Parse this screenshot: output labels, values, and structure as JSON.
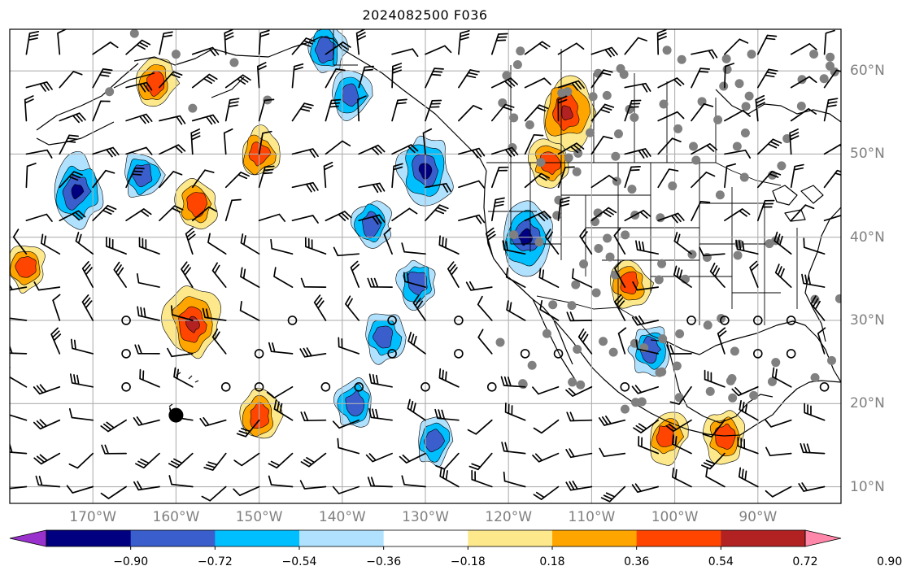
{
  "title": "2024082500 F036",
  "map": {
    "projection": "equirectangular",
    "lon_range": [
      -180,
      -80
    ],
    "lat_range": [
      8,
      65
    ],
    "gridlines": true,
    "states_drawn": true,
    "lat_labels": [
      "60°N",
      "50°N",
      "40°N",
      "30°N",
      "20°N",
      "10°N"
    ],
    "lat_values": [
      60,
      50,
      40,
      30,
      20,
      10
    ],
    "lon_labels": [
      "170°W",
      "160°W",
      "150°W",
      "140°W",
      "130°W",
      "120°W",
      "110°W",
      "100°W",
      "90°W"
    ],
    "lon_values": [
      -170,
      -160,
      -150,
      -140,
      -130,
      -120,
      -110,
      -100,
      -90
    ],
    "tropical_cyclone_marker": {
      "lon": -160,
      "lat": 18.6
    },
    "station_color": "#808080"
  },
  "colorbar": {
    "orientation": "horizontal",
    "extend": "both",
    "tick_labels": [
      "−0.90",
      "−0.72",
      "−0.54",
      "−0.36",
      "−0.18",
      "0.18",
      "0.36",
      "0.54",
      "0.72",
      "0.90"
    ],
    "colors": [
      "#9932cc",
      "#000080",
      "#3a5fcd",
      "#00bfff",
      "#b0e2ff",
      "#ffffff",
      "#fde98c",
      "#ffa500",
      "#ff4500",
      "#b22222",
      "#ff88aa"
    ]
  },
  "chart_data": {
    "type": "heatmap",
    "title": "2024082500 F036",
    "levels": [
      -0.9,
      -0.72,
      -0.54,
      -0.36,
      -0.18,
      0.18,
      0.36,
      0.54,
      0.72,
      0.9
    ],
    "positive_regions": [
      {
        "lon": -158,
        "lat": 29.5,
        "max": 0.72
      },
      {
        "lon": -150,
        "lat": 18.5,
        "max": 0.54
      },
      {
        "lon": -150,
        "lat": 50,
        "max": 0.54
      },
      {
        "lon": -157.5,
        "lat": 44,
        "max": 0.54
      },
      {
        "lon": -162.5,
        "lat": 58.5,
        "max": 0.54
      },
      {
        "lon": -113,
        "lat": 55,
        "max": 0.72
      },
      {
        "lon": -115,
        "lat": 49,
        "max": 0.54
      },
      {
        "lon": -105.5,
        "lat": 34.5,
        "max": 0.54
      },
      {
        "lon": -101,
        "lat": 16,
        "max": 0.54
      },
      {
        "lon": -94,
        "lat": 16,
        "max": 0.54
      },
      {
        "lon": -178,
        "lat": 36.5,
        "max": 0.54
      }
    ],
    "negative_regions": [
      {
        "lon": -172,
        "lat": 45.5,
        "min": -0.72
      },
      {
        "lon": -130,
        "lat": 48,
        "min": -0.72
      },
      {
        "lon": -139,
        "lat": 57,
        "min": -0.54
      },
      {
        "lon": -118,
        "lat": 40,
        "min": -0.72
      },
      {
        "lon": -131,
        "lat": 34.5,
        "min": -0.54
      },
      {
        "lon": -135,
        "lat": 28,
        "min": -0.54
      },
      {
        "lon": -129,
        "lat": 15.5,
        "min": -0.54
      },
      {
        "lon": -138.5,
        "lat": 20,
        "min": -0.54
      },
      {
        "lon": -164,
        "lat": 47.5,
        "min": -0.54
      },
      {
        "lon": -103,
        "lat": 26.5,
        "min": -0.54
      },
      {
        "lon": -136.5,
        "lat": 41.5,
        "min": -0.54
      },
      {
        "lon": -142,
        "lat": 62.5,
        "min": -0.54
      }
    ]
  }
}
